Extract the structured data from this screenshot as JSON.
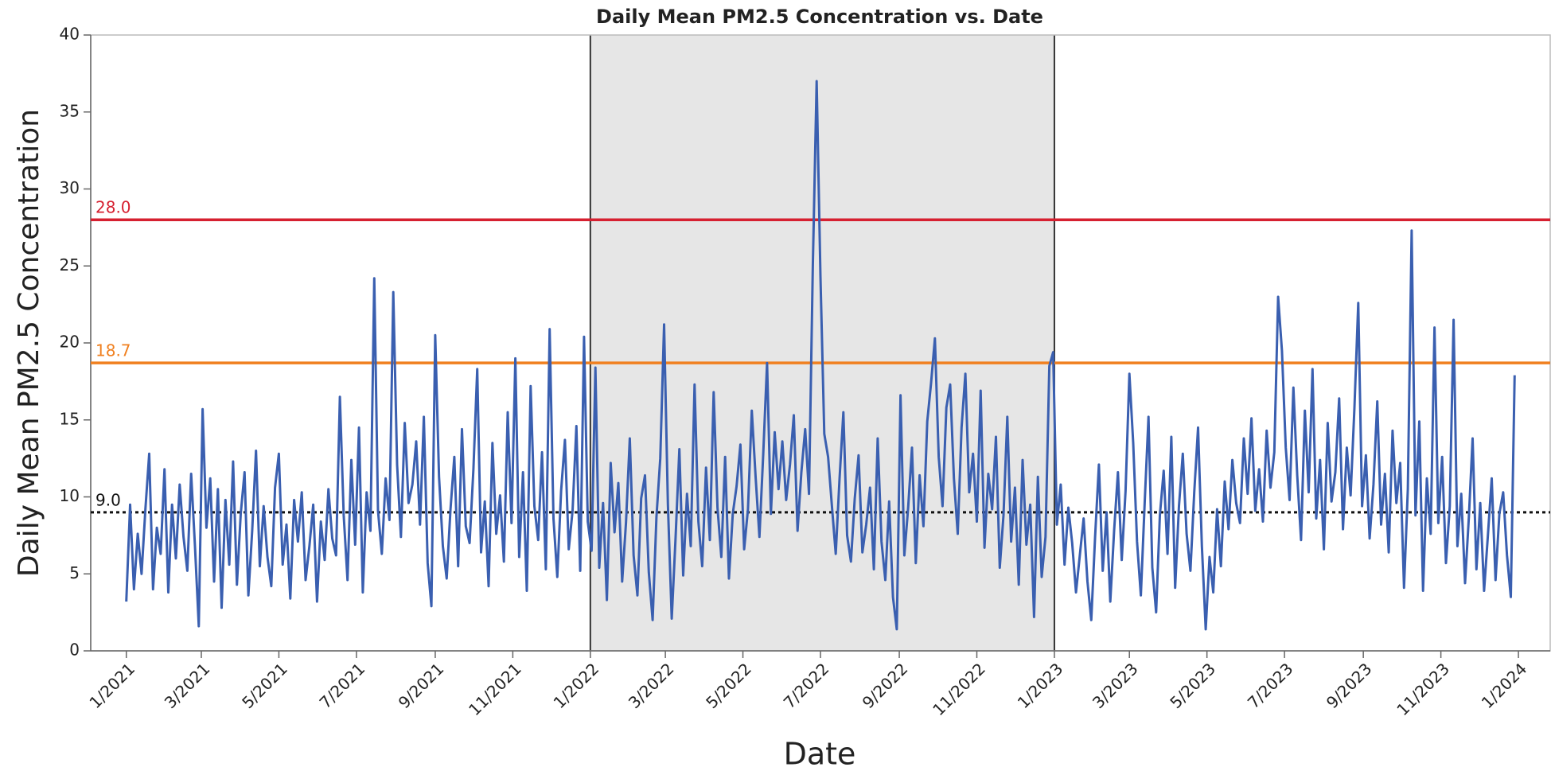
{
  "chart_data": {
    "type": "line",
    "title": "Daily Mean PM2.5 Concentration vs. Date",
    "x_label": "Date",
    "y_label": "Daily Mean PM2.5 Concentration",
    "color": "#3a5fb0",
    "xlim": [
      -28,
      1120
    ],
    "ylim": [
      0,
      40
    ],
    "yticks": [
      0,
      5,
      10,
      15,
      20,
      25,
      30,
      35,
      40
    ],
    "xticks": [
      {
        "value": 0,
        "label": "1/2021"
      },
      {
        "value": 59,
        "label": "3/2021"
      },
      {
        "value": 120,
        "label": "5/2021"
      },
      {
        "value": 181,
        "label": "7/2021"
      },
      {
        "value": 243,
        "label": "9/2021"
      },
      {
        "value": 304,
        "label": "11/2021"
      },
      {
        "value": 365,
        "label": "1/2022"
      },
      {
        "value": 424,
        "label": "3/2022"
      },
      {
        "value": 485,
        "label": "5/2022"
      },
      {
        "value": 546,
        "label": "7/2022"
      },
      {
        "value": 608,
        "label": "9/2022"
      },
      {
        "value": 669,
        "label": "11/2022"
      },
      {
        "value": 730,
        "label": "1/2023"
      },
      {
        "value": 789,
        "label": "3/2023"
      },
      {
        "value": 850,
        "label": "5/2023"
      },
      {
        "value": 911,
        "label": "7/2023"
      },
      {
        "value": 973,
        "label": "9/2023"
      },
      {
        "value": 1034,
        "label": "11/2023"
      },
      {
        "value": 1095,
        "label": "1/2024"
      }
    ],
    "grid": false,
    "shaded_region": {
      "x_range": [
        365,
        730
      ],
      "color": "#e6e6e6",
      "edge_color": "#333333"
    },
    "reference_lines": [
      {
        "value": 28,
        "label": "28.0",
        "color": "#d62030",
        "dash": "solid"
      },
      {
        "value": 18.7,
        "label": "18.7",
        "color": "#f08020",
        "dash": "solid"
      },
      {
        "value": 9,
        "label": "9.0",
        "color": "#111111",
        "dash": "dotted"
      }
    ],
    "x": [
      0,
      3,
      6,
      9,
      12,
      15,
      18,
      21,
      24,
      27,
      30,
      33,
      36,
      39,
      42,
      45,
      48,
      51,
      54,
      57,
      60,
      63,
      66,
      69,
      72,
      75,
      78,
      81,
      84,
      87,
      90,
      93,
      96,
      99,
      102,
      105,
      108,
      111,
      114,
      117,
      120,
      123,
      126,
      129,
      132,
      135,
      138,
      141,
      144,
      147,
      150,
      153,
      156,
      159,
      162,
      165,
      168,
      171,
      174,
      177,
      180,
      183,
      186,
      189,
      192,
      195,
      198,
      201,
      204,
      207,
      210,
      213,
      216,
      219,
      222,
      225,
      228,
      231,
      234,
      237,
      240,
      243,
      246,
      249,
      252,
      255,
      258,
      261,
      264,
      267,
      270,
      273,
      276,
      279,
      282,
      285,
      288,
      291,
      294,
      297,
      300,
      303,
      306,
      309,
      312,
      315,
      318,
      321,
      324,
      327,
      330,
      333,
      336,
      339,
      342,
      345,
      348,
      351,
      354,
      357,
      360,
      363,
      366,
      369,
      372,
      375,
      378,
      381,
      384,
      387,
      390,
      393,
      396,
      399,
      402,
      405,
      408,
      411,
      414,
      417,
      420,
      423,
      426,
      429,
      432,
      435,
      438,
      441,
      444,
      447,
      450,
      453,
      456,
      459,
      462,
      465,
      468,
      471,
      474,
      477,
      480,
      483,
      486,
      489,
      492,
      495,
      498,
      501,
      504,
      507,
      510,
      513,
      516,
      519,
      522,
      525,
      528,
      531,
      534,
      537,
      540,
      543,
      546,
      549,
      552,
      555,
      558,
      561,
      564,
      567,
      570,
      573,
      576,
      579,
      582,
      585,
      588,
      591,
      594,
      597,
      600,
      603,
      606,
      609,
      612,
      615,
      618,
      621,
      624,
      627,
      630,
      633,
      636,
      639,
      642,
      645,
      648,
      651,
      654,
      657,
      660,
      663,
      666,
      669,
      672,
      675,
      678,
      681,
      684,
      687,
      690,
      693,
      696,
      699,
      702,
      705,
      708,
      711,
      714,
      717,
      720,
      723,
      726,
      729,
      732,
      735,
      738,
      741,
      744,
      747,
      750,
      753,
      756,
      759,
      762,
      765,
      768,
      771,
      774,
      777,
      780,
      783,
      786,
      789,
      792,
      795,
      798,
      801,
      804,
      807,
      810,
      813,
      816,
      819,
      822,
      825,
      828,
      831,
      834,
      837,
      840,
      843,
      846,
      849,
      852,
      855,
      858,
      861,
      864,
      867,
      870,
      873,
      876,
      879,
      882,
      885,
      888,
      891,
      894,
      897,
      900,
      903,
      906,
      909,
      912,
      915,
      918,
      921,
      924,
      927,
      930,
      933,
      936,
      939,
      942,
      945,
      948,
      951,
      954,
      957,
      960,
      963,
      966,
      969,
      972,
      975,
      978,
      981,
      984,
      987,
      990,
      993,
      996,
      999,
      1002,
      1005,
      1008,
      1011,
      1014,
      1017,
      1020,
      1023,
      1026,
      1029,
      1032,
      1035,
      1038,
      1041,
      1044,
      1047,
      1050,
      1053,
      1056,
      1059,
      1062,
      1065,
      1068,
      1071,
      1074,
      1077,
      1080,
      1083,
      1086,
      1089,
      1092
    ],
    "values": [
      3.2,
      9.5,
      4,
      7.6,
      5,
      9.2,
      12.8,
      4,
      8,
      6.3,
      11.8,
      3.8,
      9.5,
      6,
      10.8,
      7.4,
      5.2,
      11.5,
      6.8,
      1.6,
      15.7,
      8,
      11.2,
      4.5,
      10.5,
      2.8,
      9.8,
      5.6,
      12.3,
      4.3,
      8.9,
      11.6,
      3.6,
      7.8,
      13,
      5.5,
      9.4,
      6.1,
      4.2,
      10.6,
      12.8,
      5.6,
      8.2,
      3.4,
      9.8,
      7.1,
      10.3,
      4.6,
      6.8,
      9.5,
      3.2,
      8.4,
      5.9,
      10.5,
      7.3,
      6.2,
      16.5,
      8.8,
      4.6,
      12.4,
      6.9,
      14.5,
      3.8,
      10.3,
      7.8,
      24.2,
      9.1,
      6.3,
      11.2,
      8.5,
      23.3,
      12.1,
      7.4,
      14.8,
      9.6,
      10.8,
      13.6,
      8.2,
      15.2,
      5.7,
      2.9,
      20.5,
      11.3,
      6.8,
      4.7,
      9.2,
      12.6,
      5.5,
      14.4,
      8.1,
      7,
      11.8,
      18.3,
      6.4,
      9.7,
      4.2,
      13.5,
      7.6,
      10.1,
      5.8,
      15.5,
      8.3,
      19,
      6.1,
      11.6,
      3.9,
      17.2,
      9.4,
      7.2,
      12.9,
      5.3,
      20.9,
      8.6,
      4.8,
      10.4,
      13.7,
      6.6,
      9.1,
      14.6,
      5.2,
      20.4,
      8.4,
      6.5,
      18.4,
      5.4,
      9.6,
      3.3,
      12.2,
      7.7,
      10.9,
      4.5,
      8.3,
      13.8,
      6.2,
      3.6,
      9.9,
      11.4,
      5.1,
      2,
      8.7,
      12.5,
      21.2,
      9.5,
      2.1,
      7.3,
      13.1,
      4.9,
      10.2,
      6.8,
      17.3,
      8.4,
      5.5,
      11.9,
      7.2,
      16.8,
      9.3,
      6.1,
      12.6,
      4.7,
      8.9,
      10.7,
      13.4,
      6.6,
      9.2,
      15.6,
      11.3,
      7.4,
      12.8,
      18.7,
      8.9,
      14.2,
      10.5,
      13.6,
      9.8,
      12.1,
      15.3,
      7.8,
      11.6,
      14.4,
      10.2,
      25,
      37,
      24.3,
      14.1,
      12.6,
      9.4,
      6.3,
      11.2,
      15.5,
      7.5,
      5.8,
      9.9,
      12.7,
      6.4,
      8.2,
      10.6,
      5.3,
      13.8,
      7.1,
      4.6,
      9.7,
      3.5,
      1.4,
      16.6,
      6.2,
      9.3,
      13.2,
      5.7,
      11.4,
      8.1,
      14.9,
      17.4,
      20.3,
      12.6,
      9.4,
      15.8,
      17.3,
      11.2,
      7.6,
      14.5,
      18,
      10.3,
      12.8,
      8.4,
      16.9,
      6.7,
      11.5,
      9.2,
      13.9,
      5.4,
      8.8,
      15.2,
      7.1,
      10.6,
      4.3,
      12.4,
      6.9,
      9.5,
      2.2,
      11.3,
      4.8,
      7.4,
      18.5,
      19.4,
      8.2,
      10.8,
      5.6,
      9.3,
      7,
      3.8,
      6.2,
      8.6,
      4.5,
      2,
      7.4,
      12.1,
      5.2,
      9,
      3.2,
      7.8,
      11.6,
      5.9,
      10.4,
      18,
      13.5,
      7.1,
      3.6,
      9.6,
      15.2,
      5.4,
      2.5,
      8.8,
      11.7,
      6.3,
      13.9,
      4.1,
      9.4,
      12.8,
      7.6,
      5.2,
      10.3,
      14.5,
      6.8,
      1.4,
      6.1,
      3.8,
      9.2,
      5.5,
      11,
      7.9,
      12.4,
      9.6,
      8.3,
      13.8,
      10.2,
      15.1,
      9.1,
      11.8,
      8.4,
      14.3,
      10.6,
      12.9,
      23,
      19.5,
      13.2,
      9.8,
      17.1,
      11.4,
      7.2,
      15.6,
      10.3,
      18.3,
      8.6,
      12.4,
      6.6,
      14.8,
      9.7,
      11.6,
      16.4,
      7.9,
      13.2,
      10.1,
      15.8,
      22.6,
      9.4,
      12.7,
      7.3,
      10.8,
      16.2,
      8.2,
      11.5,
      6.4,
      14.3,
      9.6,
      12.2,
      4.1,
      10.5,
      27.3,
      8.8,
      14.9,
      3.9,
      11.2,
      7.6,
      21,
      8.3,
      12.6,
      5.7,
      9.4,
      21.5,
      6.8,
      10.2,
      4.4,
      8.7,
      13.8,
      5.3,
      9.6,
      3.9,
      7.5,
      11.2,
      4.6,
      8.9,
      10.3,
      6.2,
      3.5,
      17.9
    ]
  }
}
